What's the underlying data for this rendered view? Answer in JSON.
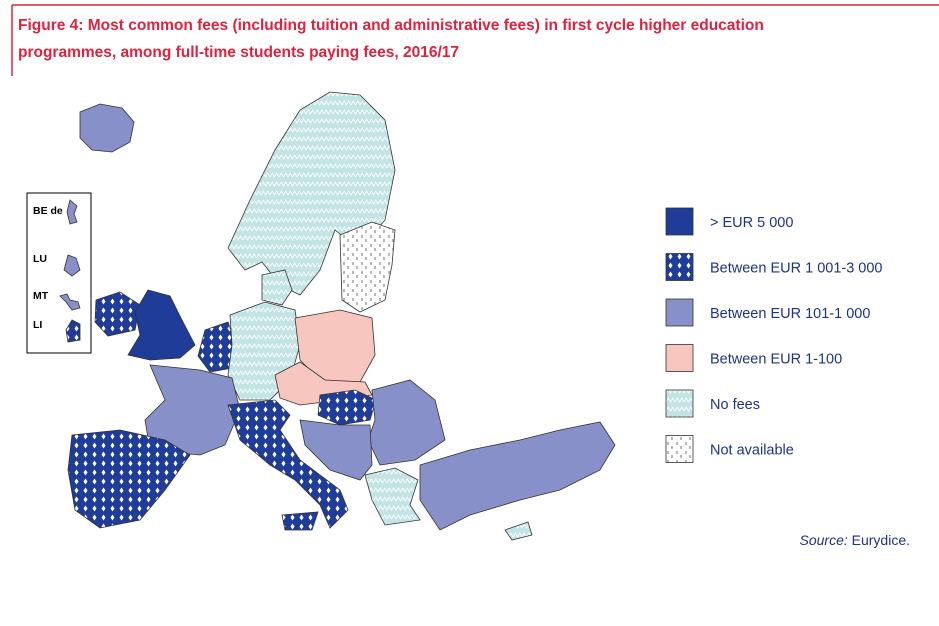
{
  "figure": {
    "title_lines": [
      "Figure 4: Most common fees (including tuition and administrative fees) in first cycle higher education",
      "programmes, among full-time students paying fees, 2016/17"
    ],
    "insets": [
      "BE de",
      "LU",
      "MT",
      "LI"
    ],
    "legend": [
      {
        "label": ">  EUR 5 000",
        "color": "#1f3c98",
        "pattern": "solid"
      },
      {
        "label": "Between EUR 1 001-3 000",
        "color": "#1f3c98",
        "pattern": "dots"
      },
      {
        "label": "Between EUR 101-1 000",
        "color": "#8790c8",
        "pattern": "solid"
      },
      {
        "label": "Between EUR 1-100",
        "color": "#f7c6bf",
        "pattern": "solid"
      },
      {
        "label": "No fees",
        "color": "#c2e4e4",
        "pattern": "zigzag"
      },
      {
        "label": "Not available",
        "color": "#ffffff",
        "pattern": "dashes"
      }
    ],
    "source_label": "Source:",
    "source_text": " Eurydice."
  }
}
